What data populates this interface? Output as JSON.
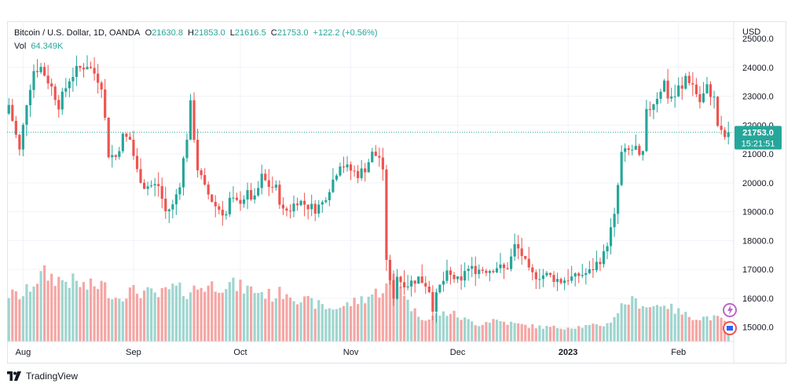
{
  "legend": {
    "symbol": "Bitcoin / U.S. Dollar, 1D, OANDA",
    "o_label": "O",
    "o_value": "21630.8",
    "h_label": "H",
    "h_value": "21853.0",
    "l_label": "L",
    "l_value": "21616.5",
    "c_label": "C",
    "c_value": "21753.0",
    "change": "+122.2 (+0.56%)",
    "vol_label": "Vol",
    "vol_value": "64.349K"
  },
  "brand": {
    "name": "TradingView",
    "icon": "tradingview-logo-icon"
  },
  "colors": {
    "up": "#26a69a",
    "down": "#ef5350",
    "up_vol": "#9fd5cf",
    "down_vol": "#f5a6a4",
    "grid": "#f0f3fa"
  },
  "chart_data": {
    "type": "candlestick",
    "currency": "USD",
    "yticks": [
      "25000.0",
      "24000.0",
      "23000.0",
      "22000.0",
      "21000.0",
      "20000.0",
      "19000.0",
      "18000.0",
      "17000.0",
      "16000.0",
      "15000.0"
    ],
    "ylim": [
      14500,
      25600
    ],
    "x_labels": [
      {
        "label": "Aug",
        "index": 4
      },
      {
        "label": "Sep",
        "index": 35
      },
      {
        "label": "Oct",
        "index": 65
      },
      {
        "label": "Nov",
        "index": 96
      },
      {
        "label": "Dec",
        "index": 126
      },
      {
        "label": "2023",
        "index": 157
      },
      {
        "label": "Feb",
        "index": 188
      }
    ],
    "last_price": "21753.0",
    "countdown": "15:21:51",
    "close_points": [
      [
        0,
        22700
      ],
      [
        3,
        21100
      ],
      [
        5,
        22800
      ],
      [
        7,
        23900
      ],
      [
        9,
        24000
      ],
      [
        12,
        23300
      ],
      [
        14,
        22700
      ],
      [
        17,
        23600
      ],
      [
        19,
        23900
      ],
      [
        22,
        24100
      ],
      [
        24,
        23800
      ],
      [
        26,
        23400
      ],
      [
        28,
        21000
      ],
      [
        30,
        20900
      ],
      [
        32,
        21600
      ],
      [
        34,
        21500
      ],
      [
        36,
        20400
      ],
      [
        38,
        19900
      ],
      [
        42,
        19900
      ],
      [
        44,
        19000
      ],
      [
        46,
        19200
      ],
      [
        48,
        20000
      ],
      [
        50,
        21600
      ],
      [
        51,
        22700
      ],
      [
        53,
        20500
      ],
      [
        55,
        19800
      ],
      [
        58,
        19200
      ],
      [
        61,
        18900
      ],
      [
        62,
        19400
      ],
      [
        64,
        19300
      ],
      [
        67,
        19600
      ],
      [
        69,
        19400
      ],
      [
        71,
        20200
      ],
      [
        73,
        19900
      ],
      [
        75,
        19800
      ],
      [
        77,
        19000
      ],
      [
        79,
        19100
      ],
      [
        81,
        19400
      ],
      [
        84,
        19200
      ],
      [
        86,
        19100
      ],
      [
        88,
        19300
      ],
      [
        91,
        20100
      ],
      [
        93,
        20700
      ],
      [
        95,
        20500
      ],
      [
        98,
        20300
      ],
      [
        100,
        20500
      ],
      [
        102,
        21000
      ],
      [
        104,
        20900
      ],
      [
        105,
        20300
      ],
      [
        106,
        17400
      ],
      [
        107,
        16500
      ],
      [
        108,
        16100
      ],
      [
        109,
        16800
      ],
      [
        110,
        16600
      ],
      [
        112,
        16500
      ],
      [
        115,
        16700
      ],
      [
        117,
        16500
      ],
      [
        118,
        16300
      ],
      [
        119,
        15700
      ],
      [
        121,
        16400
      ],
      [
        123,
        16800
      ],
      [
        125,
        16700
      ],
      [
        127,
        16500
      ],
      [
        128,
        17000
      ],
      [
        130,
        17000
      ],
      [
        133,
        17000
      ],
      [
        135,
        17000
      ],
      [
        137,
        17100
      ],
      [
        139,
        17000
      ],
      [
        140,
        17100
      ],
      [
        141,
        17400
      ],
      [
        142,
        17800
      ],
      [
        143,
        17700
      ],
      [
        144,
        17500
      ],
      [
        145,
        17200
      ],
      [
        146,
        16900
      ],
      [
        147,
        16800
      ],
      [
        149,
        16800
      ],
      [
        151,
        16800
      ],
      [
        153,
        16700
      ],
      [
        155,
        16600
      ],
      [
        157,
        16700
      ],
      [
        159,
        16700
      ],
      [
        160,
        16800
      ],
      [
        163,
        16900
      ],
      [
        165,
        17200
      ],
      [
        167,
        17500
      ],
      [
        170,
        18800
      ],
      [
        171,
        19900
      ],
      [
        172,
        21000
      ],
      [
        174,
        21100
      ],
      [
        176,
        21200
      ],
      [
        177,
        20800
      ],
      [
        178,
        21000
      ],
      [
        179,
        22400
      ],
      [
        181,
        22800
      ],
      [
        182,
        23000
      ],
      [
        184,
        23500
      ],
      [
        185,
        23000
      ],
      [
        187,
        23000
      ],
      [
        188,
        23300
      ],
      [
        189,
        23200
      ],
      [
        190,
        23700
      ],
      [
        192,
        23400
      ],
      [
        194,
        22800
      ],
      [
        196,
        23300
      ],
      [
        198,
        22900
      ],
      [
        199,
        22000
      ],
      [
        200,
        21700
      ],
      [
        201,
        21600
      ],
      [
        202,
        21753
      ]
    ],
    "volume_points": [
      [
        0,
        60
      ],
      [
        4,
        58
      ],
      [
        6,
        70
      ],
      [
        8,
        80
      ],
      [
        10,
        86
      ],
      [
        14,
        79
      ],
      [
        18,
        76
      ],
      [
        22,
        69
      ],
      [
        26,
        73
      ],
      [
        30,
        56
      ],
      [
        34,
        64
      ],
      [
        38,
        63
      ],
      [
        42,
        58
      ],
      [
        46,
        68
      ],
      [
        50,
        63
      ],
      [
        54,
        70
      ],
      [
        58,
        72
      ],
      [
        62,
        73
      ],
      [
        66,
        68
      ],
      [
        70,
        64
      ],
      [
        74,
        58
      ],
      [
        78,
        64
      ],
      [
        82,
        53
      ],
      [
        86,
        48
      ],
      [
        90,
        42
      ],
      [
        94,
        45
      ],
      [
        98,
        52
      ],
      [
        102,
        60
      ],
      [
        104,
        64
      ],
      [
        106,
        70
      ],
      [
        108,
        84
      ],
      [
        110,
        76
      ],
      [
        112,
        50
      ],
      [
        114,
        38
      ],
      [
        116,
        32
      ],
      [
        118,
        28
      ],
      [
        120,
        34
      ],
      [
        124,
        37
      ],
      [
        128,
        28
      ],
      [
        132,
        22
      ],
      [
        136,
        28
      ],
      [
        140,
        24
      ],
      [
        144,
        21
      ],
      [
        148,
        19
      ],
      [
        152,
        18
      ],
      [
        156,
        18
      ],
      [
        160,
        19
      ],
      [
        164,
        20
      ],
      [
        168,
        22
      ],
      [
        170,
        32
      ],
      [
        172,
        45
      ],
      [
        174,
        52
      ],
      [
        176,
        50
      ],
      [
        178,
        48
      ],
      [
        180,
        44
      ],
      [
        182,
        46
      ],
      [
        184,
        50
      ],
      [
        186,
        42
      ],
      [
        188,
        38
      ],
      [
        190,
        34
      ],
      [
        192,
        32
      ],
      [
        194,
        30
      ],
      [
        196,
        31
      ],
      [
        198,
        30
      ],
      [
        200,
        28
      ],
      [
        202,
        26
      ]
    ]
  }
}
